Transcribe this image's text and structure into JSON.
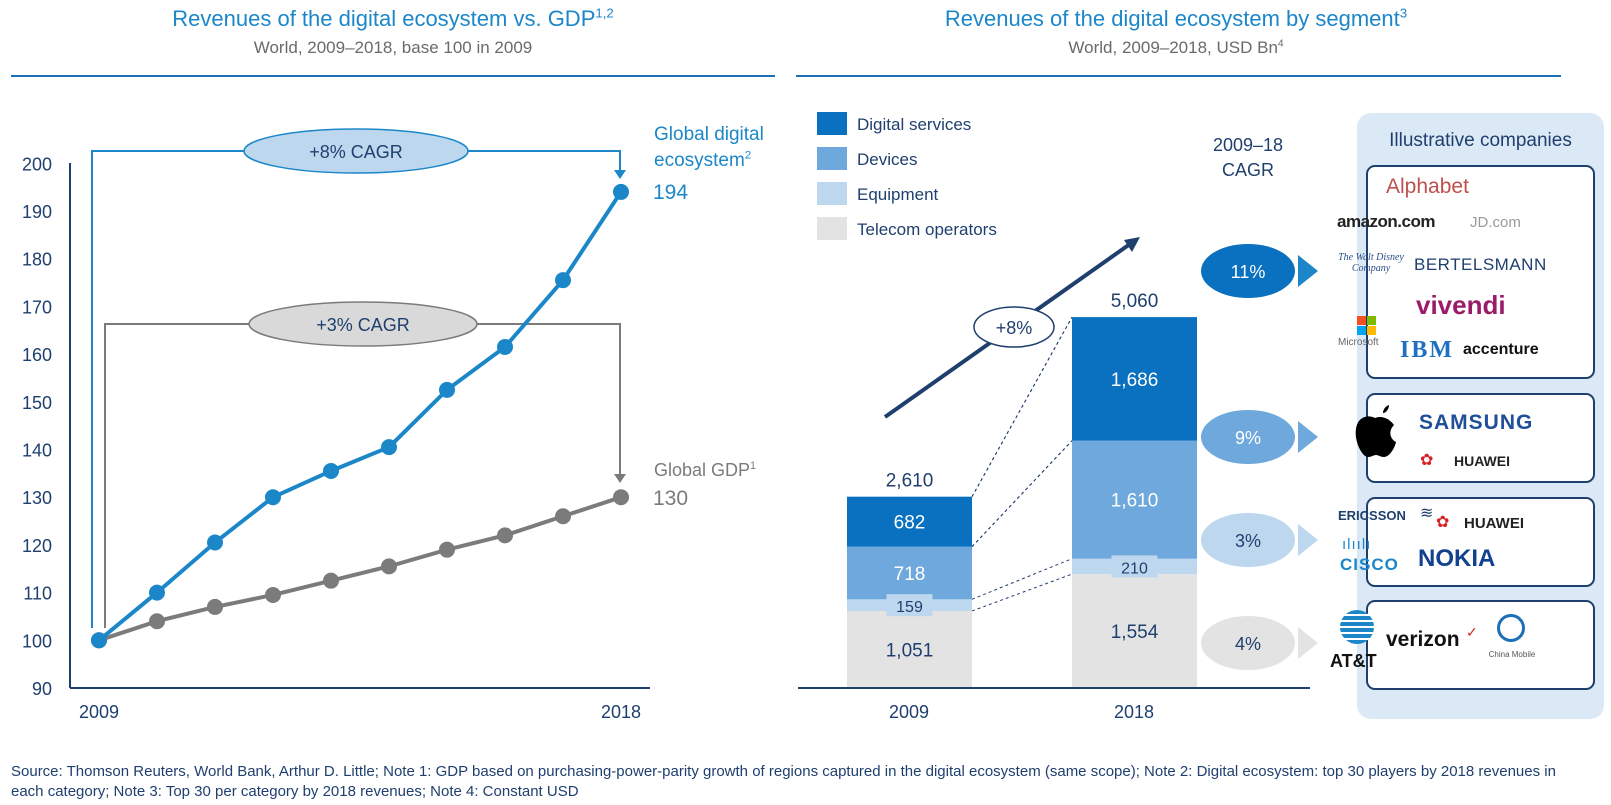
{
  "left_panel": {
    "title": "Revenues of the digital ecosystem vs. GDP",
    "title_sup": "1,2",
    "subtitle": "World, 2009–2018, base 100 in 2009",
    "series_digital_label_line1": "Global digital",
    "series_digital_label_line2": "ecosystem",
    "series_digital_label_sup": "2",
    "series_digital_end_value": "194",
    "series_gdp_label": "Global GDP",
    "series_gdp_label_sup": "1",
    "series_gdp_end_value": "130",
    "cagr_digital": "+8% CAGR",
    "cagr_gdp": "+3% CAGR",
    "x_start": "2009",
    "x_end": "2018"
  },
  "right_panel": {
    "title": "Revenues of the digital ecosystem by segment",
    "title_sup": "3",
    "subtitle": "World, 2009–2018, USD Bn",
    "subtitle_sup": "4",
    "legend": [
      "Digital services",
      "Devices",
      "Equipment",
      "Telecom operators"
    ],
    "cagr_header_line1": "2009–18",
    "cagr_header_line2": "CAGR",
    "growth_label": "+8%",
    "total_2009": "2,610",
    "total_2018": "5,060",
    "x_2009": "2009",
    "x_2018": "2018",
    "segment_cagr": [
      "11%",
      "9%",
      "3%",
      "4%"
    ],
    "companies_title": "Illustrative companies",
    "companies": {
      "digital_services": [
        "Alphabet",
        "amazon.com",
        "JD.com",
        "The Walt Disney Company",
        "BERTELSMANN",
        "vivendi",
        "Microsoft",
        "IBM",
        "accenture"
      ],
      "devices": [
        "SAMSUNG",
        "HUAWEI"
      ],
      "equipment": [
        "ERICSSON",
        "HUAWEI",
        "CISCO",
        "NOKIA"
      ],
      "telecom": [
        "AT&T",
        "verizon",
        "China Mobile"
      ]
    }
  },
  "footer": "Source: Thomson Reuters, World Bank, Arthur D. Little; Note 1: GDP based on purchasing-power-parity growth of regions captured in the digital ecosystem (same scope); Note 2: Digital ecosystem: top 30 players by 2018 revenues in each category; Note 3: Top 30 per category by 2018 revenues; Note 4: Constant USD",
  "colors": {
    "digital_services": "#0a70c0",
    "devices": "#6fa8dc",
    "equipment": "#bdd7ee",
    "telecom": "#e4e3e3",
    "gdp_line": "#7b7b7b",
    "navy": "#1f3f6e"
  },
  "chart_data": [
    {
      "type": "line",
      "title": "Revenues of the digital ecosystem vs. GDP",
      "subtitle": "World, 2009–2018, base 100 in 2009",
      "x": [
        2009,
        2010,
        2011,
        2012,
        2013,
        2014,
        2015,
        2016,
        2017,
        2018
      ],
      "x_tick_labels": [
        "2009",
        "2018"
      ],
      "ylim": [
        90,
        200
      ],
      "yticks": [
        90,
        100,
        110,
        120,
        130,
        140,
        150,
        160,
        170,
        180,
        190,
        200
      ],
      "series": [
        {
          "name": "Global digital ecosystem",
          "values": [
            100,
            110,
            120.5,
            130,
            135.5,
            140.5,
            152.5,
            161.5,
            175.5,
            194
          ],
          "color": "#1b87c9"
        },
        {
          "name": "Global GDP",
          "values": [
            100,
            104,
            107,
            109.5,
            112.5,
            115.5,
            119,
            122,
            126,
            130
          ],
          "color": "#7b7b7b"
        }
      ],
      "annotations": [
        "+8% CAGR",
        "+3% CAGR"
      ]
    },
    {
      "type": "bar",
      "stacked": true,
      "title": "Revenues of the digital ecosystem by segment",
      "subtitle": "World, 2009–2018, USD Bn",
      "categories": [
        "2009",
        "2018"
      ],
      "series": [
        {
          "name": "Telecom operators",
          "values": [
            1051,
            1554
          ],
          "labels": [
            "1,051",
            "1,554"
          ]
        },
        {
          "name": "Equipment",
          "values": [
            159,
            210
          ],
          "labels": [
            "159",
            "210"
          ]
        },
        {
          "name": "Devices",
          "values": [
            718,
            1610
          ],
          "labels": [
            "718",
            "1,610"
          ]
        },
        {
          "name": "Digital services",
          "values": [
            682,
            1686
          ],
          "labels": [
            "682",
            "1,686"
          ]
        }
      ],
      "totals": [
        2610,
        5060
      ],
      "legend_position": "top-left",
      "cagr_2009_2018": {
        "Digital services": "11%",
        "Devices": "9%",
        "Equipment": "3%",
        "Telecom operators": "4%"
      },
      "overall_growth": "+8%"
    }
  ]
}
